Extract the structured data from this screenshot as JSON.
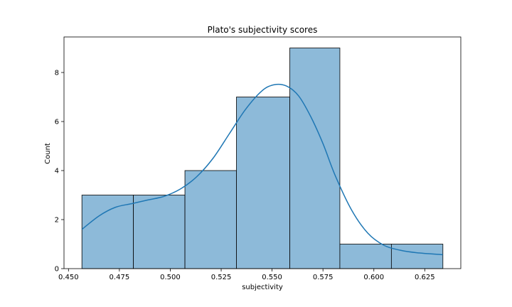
{
  "chart_data": {
    "type": "bar",
    "title": "Plato's subjectivity scores",
    "xlabel": "subjectivity",
    "ylabel": "Count",
    "bin_edges": [
      0.4566,
      0.4819,
      0.5072,
      0.5325,
      0.5587,
      0.5833,
      0.6086,
      0.6339
    ],
    "values": [
      3,
      3,
      4,
      7,
      9,
      1,
      1
    ],
    "xlim": [
      0.4478,
      0.6427
    ],
    "ylim": [
      0,
      9.45
    ],
    "xticks": [
      {
        "value": 0.45,
        "label": "0.450"
      },
      {
        "value": 0.475,
        "label": "0.475"
      },
      {
        "value": 0.5,
        "label": "0.500"
      },
      {
        "value": 0.525,
        "label": "0.525"
      },
      {
        "value": 0.55,
        "label": "0.550"
      },
      {
        "value": 0.575,
        "label": "0.575"
      },
      {
        "value": 0.6,
        "label": "0.600"
      },
      {
        "value": 0.625,
        "label": "0.625"
      }
    ],
    "yticks": [
      {
        "value": 0,
        "label": "0"
      },
      {
        "value": 2,
        "label": "2"
      },
      {
        "value": 4,
        "label": "4"
      },
      {
        "value": 6,
        "label": "6"
      },
      {
        "value": 8,
        "label": "8"
      }
    ],
    "kde": {
      "x": [
        0.4566,
        0.465,
        0.473,
        0.481,
        0.489,
        0.497,
        0.505,
        0.513,
        0.521,
        0.529,
        0.537,
        0.545,
        0.551,
        0.557,
        0.563,
        0.569,
        0.575,
        0.581,
        0.589,
        0.597,
        0.605,
        0.613,
        0.621,
        0.6339
      ],
      "y": [
        1.6,
        2.15,
        2.5,
        2.65,
        2.8,
        2.95,
        3.25,
        3.75,
        4.5,
        5.5,
        6.5,
        7.25,
        7.5,
        7.45,
        7.05,
        6.2,
        5.1,
        3.8,
        2.4,
        1.45,
        0.95,
        0.75,
        0.65,
        0.57
      ]
    },
    "colors": {
      "bar_fill": "#8dbad9",
      "line": "#1f77b4"
    },
    "grid": false,
    "legend": "none"
  }
}
